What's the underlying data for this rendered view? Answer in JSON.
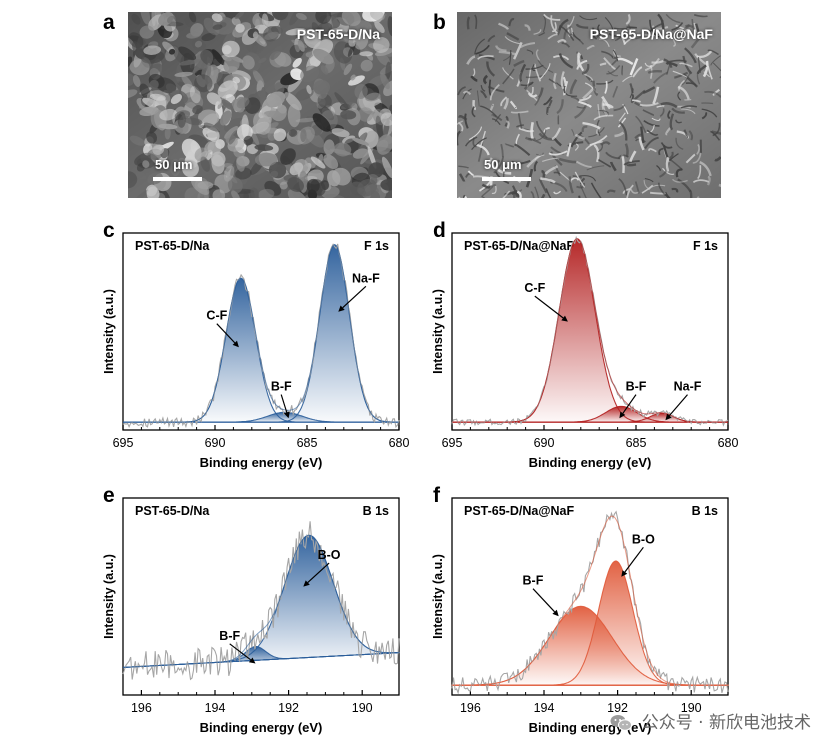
{
  "figure": {
    "panel_letters": [
      "a",
      "b",
      "c",
      "d",
      "e",
      "f"
    ],
    "sem_images": [
      {
        "label": "PST-65-D/Na",
        "scale_bar": "50 μm"
      },
      {
        "label": "PST-65-D/Na@NaF",
        "scale_bar": "50 μm"
      }
    ],
    "watermark": "公众号 · 新欣电池技术",
    "colors": {
      "blue": "#2a5d9a",
      "red": "#b21e1e",
      "salmon": "#e05a3a",
      "raw": "#a6a6a6"
    }
  },
  "chart_data": [
    {
      "type": "line",
      "panel": "c",
      "sample_label": "PST-65-D/Na",
      "region_label": "F 1s",
      "xlabel": "Binding energy (eV)",
      "ylabel": "Intensity (a.u.)",
      "xlim": [
        695,
        680
      ],
      "xticks": [
        695,
        690,
        685,
        680
      ],
      "reversed_x": true,
      "peaks": [
        {
          "name": "C-F",
          "center": 688.6,
          "fwhm": 1.9,
          "height": 0.73
        },
        {
          "name": "B-F",
          "center": 686.2,
          "fwhm": 2.2,
          "height": 0.05
        },
        {
          "name": "Na-F",
          "center": 683.5,
          "fwhm": 1.9,
          "height": 0.9
        }
      ],
      "background": 0.04,
      "noise": 0.025,
      "annotations": [
        {
          "text": "C-F",
          "x": 689.9,
          "y": 0.56,
          "arrow_to": [
            688.7,
            0.42
          ]
        },
        {
          "text": "B-F",
          "x": 686.4,
          "y": 0.2,
          "arrow_to": [
            686.0,
            0.06
          ]
        },
        {
          "text": "Na-F",
          "x": 681.8,
          "y": 0.75,
          "arrow_to": [
            683.3,
            0.6
          ]
        }
      ],
      "color": "#2a5d9a"
    },
    {
      "type": "line",
      "panel": "d",
      "sample_label": "PST-65-D/Na@NaF",
      "region_label": "F 1s",
      "xlabel": "Binding energy (eV)",
      "ylabel": "Intensity (a.u.)",
      "xlim": [
        695,
        680
      ],
      "xticks": [
        695,
        690,
        685,
        680
      ],
      "reversed_x": true,
      "peaks": [
        {
          "name": "C-F",
          "center": 688.2,
          "fwhm": 2.3,
          "height": 0.93
        },
        {
          "name": "B-F",
          "center": 685.8,
          "fwhm": 2.0,
          "height": 0.08
        },
        {
          "name": "Na-F",
          "center": 683.6,
          "fwhm": 1.5,
          "height": 0.045
        }
      ],
      "background": 0.04,
      "noise": 0.015,
      "annotations": [
        {
          "text": "C-F",
          "x": 690.5,
          "y": 0.7,
          "arrow_to": [
            688.7,
            0.55
          ]
        },
        {
          "text": "B-F",
          "x": 685.0,
          "y": 0.2,
          "arrow_to": [
            685.9,
            0.06
          ]
        },
        {
          "text": "Na-F",
          "x": 682.2,
          "y": 0.2,
          "arrow_to": [
            683.4,
            0.05
          ]
        }
      ],
      "color": "#b21e1e"
    },
    {
      "type": "line",
      "panel": "e",
      "sample_label": "PST-65-D/Na",
      "region_label": "B 1s",
      "xlabel": "Binding energy (eV)",
      "ylabel": "Intensity (a.u.)",
      "xlim": [
        196.5,
        189
      ],
      "xticks": [
        196,
        194,
        192,
        190
      ],
      "reversed_x": true,
      "peaks": [
        {
          "name": "B-F",
          "center": 192.9,
          "fwhm": 0.65,
          "height": 0.07
        },
        {
          "name": "B-O",
          "center": 191.45,
          "fwhm": 1.55,
          "height": 0.62
        }
      ],
      "background": 0.14,
      "background_slope": 0.01,
      "noise": 0.08,
      "annotations": [
        {
          "text": "B-F",
          "x": 193.6,
          "y": 0.28,
          "arrow_to": [
            192.9,
            0.16
          ]
        },
        {
          "text": "B-O",
          "x": 190.9,
          "y": 0.69,
          "arrow_to": [
            191.6,
            0.55
          ]
        }
      ],
      "color": "#2a5d9a"
    },
    {
      "type": "line",
      "panel": "f",
      "sample_label": "PST-65-D/Na@NaF",
      "region_label": "B 1s",
      "xlabel": "Binding energy (eV)",
      "ylabel": "Intensity (a.u.)",
      "xlim": [
        196.5,
        189
      ],
      "xticks": [
        196,
        194,
        192,
        190
      ],
      "reversed_x": true,
      "peaks": [
        {
          "name": "B-F",
          "center": 193.0,
          "fwhm": 2.0,
          "height": 0.4
        },
        {
          "name": "B-O",
          "center": 192.05,
          "fwhm": 1.1,
          "height": 0.63
        }
      ],
      "background": 0.05,
      "noise": 0.04,
      "annotations": [
        {
          "text": "B-F",
          "x": 194.3,
          "y": 0.56,
          "arrow_to": [
            193.6,
            0.4
          ]
        },
        {
          "text": "B-O",
          "x": 191.3,
          "y": 0.77,
          "arrow_to": [
            191.9,
            0.6
          ]
        }
      ],
      "color": "#e05a3a"
    }
  ]
}
